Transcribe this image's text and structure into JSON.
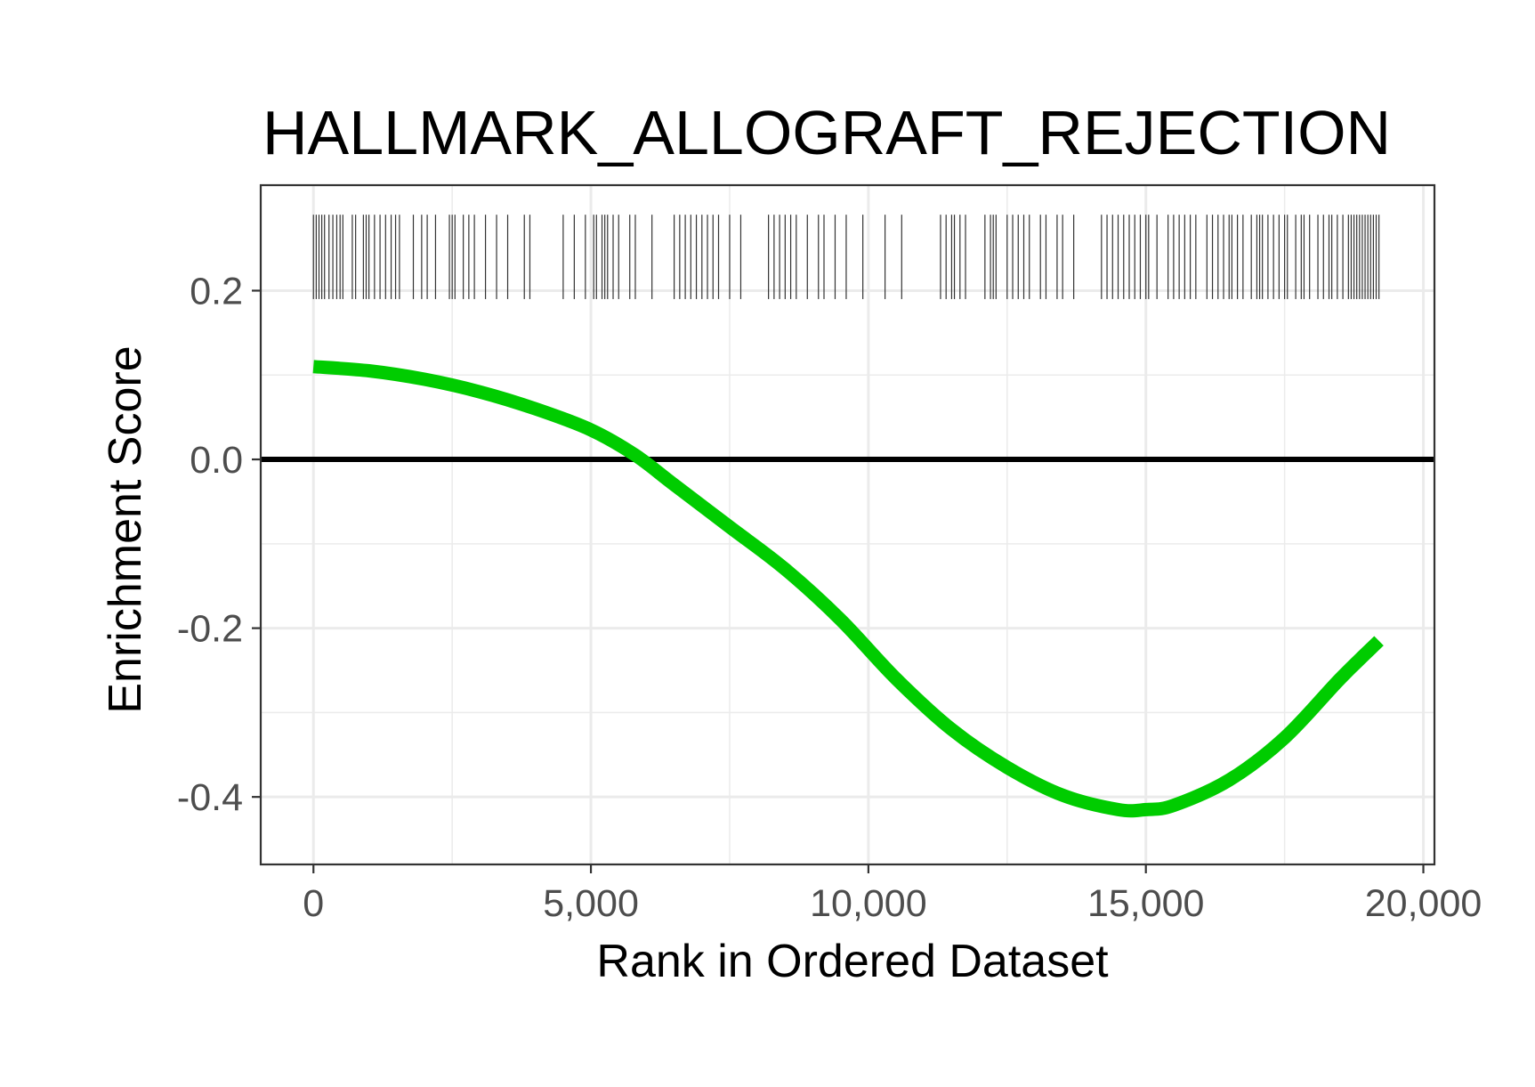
{
  "chart_data": {
    "type": "line",
    "title": "HALLMARK_ALLOGRAFT_REJECTION",
    "xlabel": "Rank in Ordered Dataset",
    "ylabel": "Enrichment Score",
    "xlim": [
      -950,
      20200
    ],
    "ylim": [
      -0.48,
      0.325
    ],
    "x_ticks": [
      0,
      5000,
      10000,
      15000,
      20000
    ],
    "x_tick_labels": [
      "0",
      "5,000",
      "10,000",
      "15,000",
      "20,000"
    ],
    "y_ticks": [
      0.2,
      0.0,
      -0.2,
      -0.4
    ],
    "y_tick_labels": [
      "0.2",
      "0.0",
      "-0.2",
      "-0.4"
    ],
    "grid": true,
    "zero_line": 0.0,
    "colors": {
      "curve": "#00cc00",
      "zero_line": "#000000",
      "rug": "#333333",
      "grid": "#ebebeb",
      "panel_border": "#333333"
    },
    "series": [
      {
        "x": [
          0,
          1000,
          2000,
          3000,
          4000,
          5000,
          5800,
          6500,
          7500,
          8500,
          9500,
          10500,
          11500,
          12500,
          13500,
          14500,
          15000,
          15500,
          16500,
          17500,
          18500,
          19200
        ],
        "y": [
          0.11,
          0.105,
          0.095,
          0.08,
          0.06,
          0.035,
          0.005,
          -0.03,
          -0.08,
          -0.13,
          -0.19,
          -0.26,
          -0.32,
          -0.365,
          -0.398,
          -0.415,
          -0.415,
          -0.41,
          -0.38,
          -0.33,
          -0.26,
          -0.215
        ]
      }
    ],
    "rug": {
      "y_range": [
        0.19,
        0.29
      ],
      "positions": [
        0,
        50,
        100,
        150,
        200,
        280,
        350,
        420,
        480,
        530,
        700,
        760,
        900,
        950,
        1000,
        1100,
        1200,
        1300,
        1400,
        1480,
        1550,
        1800,
        1950,
        2050,
        2200,
        2450,
        2500,
        2550,
        2700,
        2800,
        2900,
        3100,
        3300,
        3500,
        3800,
        3900,
        4500,
        4700,
        4900,
        5050,
        5100,
        5200,
        5250,
        5300,
        5400,
        5500,
        5700,
        5800,
        6100,
        6500,
        6600,
        6700,
        6800,
        6900,
        7000,
        7100,
        7200,
        7300,
        7500,
        7700,
        8200,
        8300,
        8400,
        8500,
        8600,
        8700,
        8900,
        9100,
        9200,
        9400,
        9600,
        9900,
        10300,
        10600,
        11300,
        11400,
        11500,
        11550,
        11650,
        11750,
        12100,
        12200,
        12250,
        12300,
        12500,
        12600,
        12700,
        12800,
        12900,
        13100,
        13200,
        13400,
        13500,
        13700,
        14200,
        14300,
        14400,
        14500,
        14600,
        14700,
        14800,
        14900,
        15000,
        15050,
        15200,
        15400,
        15500,
        15600,
        15700,
        15800,
        15900,
        16100,
        16200,
        16300,
        16400,
        16500,
        16550,
        16650,
        16750,
        16900,
        17000,
        17050,
        17100,
        17200,
        17300,
        17400,
        17500,
        17550,
        17700,
        17800,
        17850,
        17950,
        18100,
        18200,
        18300,
        18350,
        18450,
        18550,
        18650,
        18700,
        18750,
        18800,
        18850,
        18900,
        18950,
        19000,
        19050,
        19100,
        19150,
        19200
      ]
    }
  }
}
